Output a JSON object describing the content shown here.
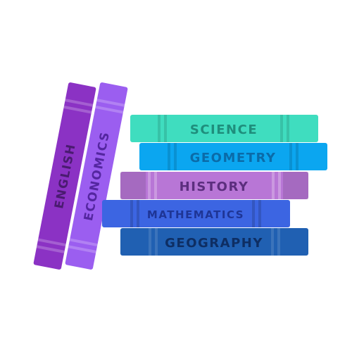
{
  "illustration": {
    "stacked_books": [
      {
        "label": "SCIENCE",
        "cover_color": "#3FDDBF",
        "label_color": "#1F8E7C"
      },
      {
        "label": "GEOMETRY",
        "cover_color": "#0BA6F0",
        "label_color": "#0B6BA8"
      },
      {
        "label": "HISTORY",
        "cover_color": "#B876D6",
        "label_color": "#5C2E7E"
      },
      {
        "label": "MATHEMATICS",
        "cover_color": "#3C65E2",
        "label_color": "#1E3596"
      },
      {
        "label": "GEOGRAPHY",
        "cover_color": "#2060B2",
        "label_color": "#0E2E63"
      }
    ],
    "leaning_books": [
      {
        "label": "ENGLISH",
        "cover_color": "#8B32C4",
        "label_color": "#4A1B70"
      },
      {
        "label": "ECONOMICS",
        "cover_color": "#9B5EF0",
        "label_color": "#5426A0"
      }
    ]
  }
}
